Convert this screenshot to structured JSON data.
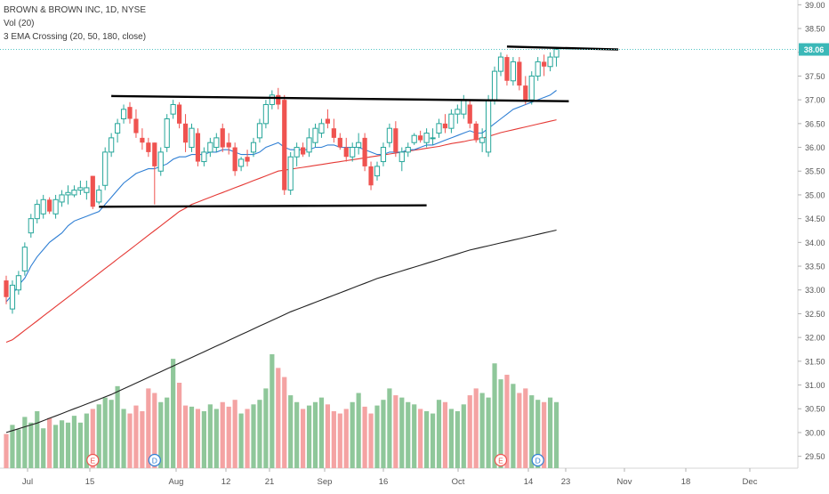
{
  "legend": {
    "title": "BROWN & BROWN INC, 1D, NYSE",
    "volume": "Vol (20)",
    "ema": "3 EMA Crossing (20, 50, 180, close)"
  },
  "last_price_label": "38.06",
  "colors": {
    "up": "#26a69a",
    "down": "#ef5350",
    "up_volume": "#8fc79a",
    "down_volume": "#f4a3a3",
    "ema20": "#2f7fd4",
    "ema50": "#e53935",
    "ema180": "#222222",
    "price_line": "#4fc3c3",
    "price_badge": "#3bb8b8",
    "trendline": "#000000"
  },
  "chart_data": {
    "type": "candlestick",
    "x_ticks": [
      "Jul",
      "15",
      "Aug",
      "12",
      "21",
      "Sep",
      "16",
      "Oct",
      "14",
      "23",
      "Nov",
      "18",
      "Dec"
    ],
    "y_ticks": [
      "39.00",
      "38.50",
      "38.00",
      "37.50",
      "37.00",
      "36.50",
      "36.00",
      "35.50",
      "35.00",
      "34.50",
      "34.00",
      "33.50",
      "33.00",
      "32.50",
      "32.00",
      "31.50",
      "31.00",
      "30.50",
      "30.00",
      "29.50"
    ],
    "y_tick_values": [
      39.0,
      38.5,
      38.0,
      37.5,
      37.0,
      36.5,
      36.0,
      35.5,
      35.0,
      34.5,
      34.0,
      33.5,
      33.0,
      32.5,
      32.0,
      31.5,
      31.0,
      30.5,
      30.0,
      29.5
    ],
    "ylim": [
      29.25,
      39.1
    ],
    "last_price": 38.06,
    "event_markers": [
      {
        "label": "E",
        "index": 14
      },
      {
        "label": "D",
        "index": 24
      },
      {
        "label": "E",
        "index": 80
      },
      {
        "label": "D",
        "index": 86
      }
    ],
    "ohlc": [
      [
        33.2,
        33.3,
        32.7,
        32.85
      ],
      [
        32.6,
        33.2,
        32.5,
        33.1
      ],
      [
        33.0,
        33.4,
        32.9,
        33.3
      ],
      [
        33.4,
        34.0,
        33.3,
        33.9
      ],
      [
        34.2,
        34.6,
        34.1,
        34.5
      ],
      [
        34.5,
        34.9,
        34.4,
        34.8
      ],
      [
        34.6,
        35.0,
        34.5,
        34.9
      ],
      [
        34.9,
        34.95,
        34.6,
        34.65
      ],
      [
        34.6,
        35.0,
        34.5,
        34.9
      ],
      [
        34.85,
        35.1,
        34.75,
        35.0
      ],
      [
        35.0,
        35.2,
        34.8,
        35.05
      ],
      [
        35.0,
        35.2,
        34.95,
        35.1
      ],
      [
        35.1,
        35.3,
        35.0,
        35.15
      ],
      [
        35.05,
        35.3,
        34.9,
        35.15
      ],
      [
        35.4,
        35.4,
        34.7,
        34.75
      ],
      [
        34.85,
        35.2,
        34.8,
        35.1
      ],
      [
        35.2,
        36.0,
        35.1,
        35.9
      ],
      [
        35.9,
        36.3,
        35.8,
        36.2
      ],
      [
        36.3,
        36.6,
        36.1,
        36.5
      ],
      [
        36.6,
        36.9,
        36.5,
        36.8
      ],
      [
        36.85,
        36.95,
        36.5,
        36.6
      ],
      [
        36.6,
        36.8,
        36.2,
        36.3
      ],
      [
        36.2,
        36.4,
        35.95,
        36.1
      ],
      [
        36.1,
        36.2,
        35.8,
        35.9
      ],
      [
        36.1,
        36.1,
        34.8,
        35.6
      ],
      [
        35.5,
        36.0,
        35.4,
        35.9
      ],
      [
        36.0,
        36.7,
        35.9,
        36.6
      ],
      [
        36.7,
        37.0,
        36.6,
        36.9
      ],
      [
        36.9,
        36.95,
        36.4,
        36.5
      ],
      [
        36.5,
        36.7,
        35.9,
        36.1
      ],
      [
        36.0,
        36.5,
        35.9,
        36.4
      ],
      [
        36.3,
        36.4,
        35.6,
        35.7
      ],
      [
        35.7,
        36.0,
        35.6,
        35.9
      ],
      [
        35.9,
        36.2,
        35.8,
        36.1
      ],
      [
        36.0,
        36.3,
        35.9,
        36.2
      ],
      [
        36.4,
        36.5,
        35.9,
        36.0
      ],
      [
        36.1,
        36.3,
        35.85,
        36.0
      ],
      [
        36.0,
        36.1,
        35.4,
        35.5
      ],
      [
        35.6,
        35.8,
        35.5,
        35.75
      ],
      [
        35.8,
        35.95,
        35.6,
        35.7
      ],
      [
        35.9,
        36.2,
        35.8,
        36.1
      ],
      [
        36.2,
        36.6,
        36.1,
        36.5
      ],
      [
        36.5,
        37.0,
        36.4,
        36.9
      ],
      [
        36.9,
        37.2,
        36.8,
        37.1
      ],
      [
        37.1,
        37.25,
        36.8,
        36.9
      ],
      [
        37.0,
        37.1,
        35.0,
        35.1
      ],
      [
        35.1,
        35.9,
        35.0,
        35.8
      ],
      [
        35.8,
        36.1,
        35.6,
        36.0
      ],
      [
        36.0,
        36.1,
        35.8,
        35.85
      ],
      [
        35.9,
        36.4,
        35.8,
        36.2
      ],
      [
        36.1,
        36.5,
        36.0,
        36.4
      ],
      [
        36.3,
        36.6,
        36.2,
        36.5
      ],
      [
        36.6,
        36.8,
        36.4,
        36.5
      ],
      [
        36.4,
        36.6,
        36.1,
        36.2
      ],
      [
        36.2,
        36.3,
        35.95,
        36.0
      ],
      [
        36.0,
        36.2,
        35.7,
        35.8
      ],
      [
        35.8,
        36.1,
        35.7,
        36.0
      ],
      [
        36.0,
        36.3,
        35.85,
        36.1
      ],
      [
        36.2,
        36.3,
        35.5,
        35.6
      ],
      [
        35.6,
        35.7,
        35.1,
        35.2
      ],
      [
        35.4,
        35.7,
        35.3,
        35.6
      ],
      [
        35.7,
        36.1,
        35.6,
        36.0
      ],
      [
        36.1,
        36.5,
        36.0,
        36.4
      ],
      [
        36.4,
        36.55,
        35.8,
        35.9
      ],
      [
        35.7,
        36.0,
        35.5,
        35.9
      ],
      [
        35.9,
        36.1,
        35.8,
        36.0
      ],
      [
        36.1,
        36.3,
        36.05,
        36.25
      ],
      [
        36.25,
        36.35,
        36.1,
        36.15
      ],
      [
        36.1,
        36.4,
        36.0,
        36.3
      ],
      [
        36.2,
        36.4,
        36.05,
        36.2
      ],
      [
        36.3,
        36.6,
        36.2,
        36.5
      ],
      [
        36.5,
        36.7,
        36.3,
        36.4
      ],
      [
        36.4,
        36.8,
        36.3,
        36.7
      ],
      [
        36.7,
        36.9,
        36.5,
        36.8
      ],
      [
        36.7,
        37.1,
        36.6,
        37.0
      ],
      [
        36.9,
        37.0,
        36.4,
        36.5
      ],
      [
        36.5,
        36.55,
        36.1,
        36.15
      ],
      [
        36.1,
        36.4,
        35.9,
        36.2
      ],
      [
        35.9,
        37.1,
        35.8,
        37.0
      ],
      [
        37.0,
        37.7,
        36.9,
        37.6
      ],
      [
        37.6,
        38.0,
        37.5,
        37.9
      ],
      [
        37.9,
        37.95,
        37.3,
        37.4
      ],
      [
        37.4,
        37.9,
        37.3,
        37.8
      ],
      [
        37.8,
        37.9,
        37.2,
        37.3
      ],
      [
        37.3,
        37.5,
        36.9,
        37.0
      ],
      [
        37.0,
        37.6,
        36.9,
        37.5
      ],
      [
        37.5,
        37.9,
        37.4,
        37.8
      ],
      [
        37.8,
        37.95,
        37.5,
        37.7
      ],
      [
        37.7,
        38.0,
        37.6,
        37.9
      ],
      [
        37.9,
        38.1,
        37.7,
        38.06
      ]
    ],
    "volume_levels": [
      0.3,
      0.38,
      0.34,
      0.45,
      0.4,
      0.5,
      0.35,
      0.44,
      0.38,
      0.42,
      0.4,
      0.46,
      0.4,
      0.48,
      0.52,
      0.56,
      0.62,
      0.6,
      0.72,
      0.52,
      0.48,
      0.55,
      0.5,
      0.7,
      0.66,
      0.58,
      0.62,
      0.96,
      0.75,
      0.55,
      0.54,
      0.52,
      0.5,
      0.56,
      0.52,
      0.58,
      0.54,
      0.6,
      0.48,
      0.52,
      0.56,
      0.6,
      0.7,
      1.0,
      0.88,
      0.8,
      0.64,
      0.58,
      0.52,
      0.55,
      0.58,
      0.62,
      0.56,
      0.5,
      0.48,
      0.52,
      0.58,
      0.66,
      0.54,
      0.48,
      0.55,
      0.6,
      0.7,
      0.64,
      0.62,
      0.58,
      0.56,
      0.52,
      0.5,
      0.48,
      0.6,
      0.58,
      0.52,
      0.5,
      0.56,
      0.64,
      0.7,
      0.66,
      0.62,
      0.92,
      0.78,
      0.82,
      0.74,
      0.66,
      0.7,
      0.64,
      0.6,
      0.58,
      0.62,
      0.58
    ],
    "ema20": [
      32.75,
      32.9,
      33.1,
      33.25,
      33.5,
      33.7,
      33.85,
      34.0,
      34.1,
      34.2,
      34.35,
      34.45,
      34.5,
      34.55,
      34.6,
      34.65,
      34.8,
      34.95,
      35.1,
      35.25,
      35.35,
      35.45,
      35.5,
      35.55,
      35.55,
      35.6,
      35.65,
      35.75,
      35.8,
      35.8,
      35.85,
      35.85,
      35.85,
      35.9,
      35.9,
      35.95,
      35.95,
      35.9,
      35.85,
      35.85,
      35.85,
      35.9,
      36.0,
      36.05,
      36.1,
      36.0,
      35.95,
      35.95,
      35.95,
      35.95,
      36.0,
      36.0,
      36.05,
      36.05,
      36.0,
      36.0,
      36.0,
      36.0,
      35.95,
      35.9,
      35.85,
      35.85,
      35.9,
      35.9,
      35.9,
      35.95,
      35.95,
      36.0,
      36.05,
      36.05,
      36.1,
      36.15,
      36.2,
      36.25,
      36.3,
      36.35,
      36.3,
      36.3,
      36.4,
      36.5,
      36.6,
      36.7,
      36.8,
      36.85,
      36.9,
      36.95,
      37.0,
      37.05,
      37.1,
      37.2
    ],
    "ema50": [
      31.9,
      31.95,
      32.05,
      32.15,
      32.25,
      32.35,
      32.45,
      32.55,
      32.65,
      32.75,
      32.85,
      32.95,
      33.05,
      33.15,
      33.25,
      33.35,
      33.45,
      33.55,
      33.65,
      33.75,
      33.85,
      33.95,
      34.05,
      34.15,
      34.25,
      34.35,
      34.45,
      34.55,
      34.65,
      34.72,
      34.8,
      34.85,
      34.9,
      34.95,
      35.0,
      35.05,
      35.1,
      35.15,
      35.2,
      35.25,
      35.3,
      35.35,
      35.4,
      35.45,
      35.5,
      35.52,
      35.54,
      35.56,
      35.58,
      35.6,
      35.62,
      35.64,
      35.66,
      35.68,
      35.7,
      35.72,
      35.74,
      35.76,
      35.78,
      35.8,
      35.82,
      35.84,
      35.86,
      35.88,
      35.9,
      35.92,
      35.94,
      35.96,
      35.98,
      36.0,
      36.02,
      36.05,
      36.08,
      36.1,
      36.12,
      36.15,
      36.17,
      36.19,
      36.23,
      36.27,
      36.31,
      36.34,
      36.37,
      36.4,
      36.43,
      36.46,
      36.49,
      36.52,
      36.55,
      36.58
    ],
    "ema180": [
      30.0,
      30.04,
      30.08,
      30.12,
      30.16,
      30.2,
      30.25,
      30.3,
      30.35,
      30.4,
      30.45,
      30.5,
      30.55,
      30.6,
      30.65,
      30.7,
      30.75,
      30.8,
      30.86,
      30.92,
      30.98,
      31.04,
      31.1,
      31.16,
      31.22,
      31.28,
      31.34,
      31.4,
      31.46,
      31.52,
      31.58,
      31.64,
      31.7,
      31.76,
      31.82,
      31.88,
      31.94,
      32.0,
      32.06,
      32.12,
      32.18,
      32.24,
      32.3,
      32.36,
      32.42,
      32.48,
      32.54,
      32.59,
      32.64,
      32.69,
      32.74,
      32.79,
      32.84,
      32.89,
      32.94,
      32.99,
      33.04,
      33.09,
      33.14,
      33.19,
      33.24,
      33.28,
      33.32,
      33.36,
      33.4,
      33.44,
      33.48,
      33.52,
      33.56,
      33.6,
      33.64,
      33.68,
      33.72,
      33.76,
      33.8,
      33.84,
      33.87,
      33.9,
      33.93,
      33.96,
      33.99,
      34.02,
      34.05,
      34.08,
      34.11,
      34.14,
      34.17,
      34.2,
      34.23,
      34.26
    ],
    "trendlines": [
      {
        "i1": 17,
        "p1": 37.08,
        "i2": 91,
        "p2": 36.97
      },
      {
        "i1": 15,
        "p1": 34.75,
        "i2": 68,
        "p2": 34.78
      },
      {
        "i1": 81,
        "p1": 38.12,
        "i2": 99,
        "p2": 38.06
      }
    ]
  }
}
